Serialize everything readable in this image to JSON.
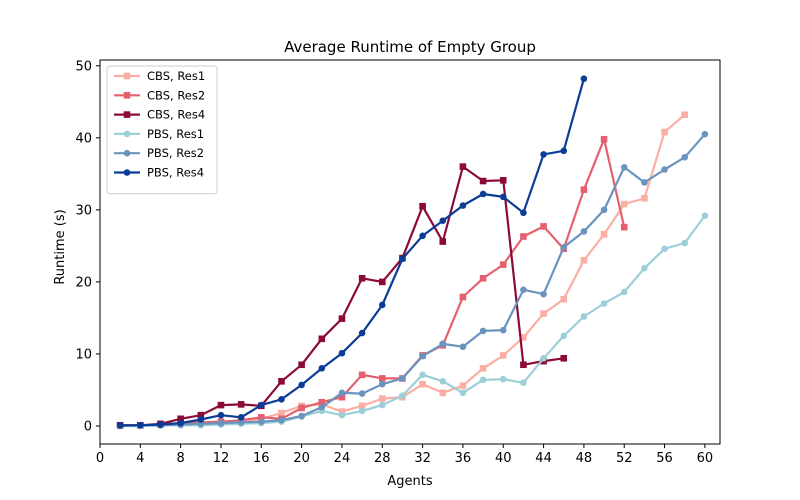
{
  "chart_data": {
    "type": "line",
    "title": "Average Runtime of Empty Group",
    "xlabel": "Agents",
    "ylabel": "Runtime (s)",
    "xlim": [
      0,
      61.5
    ],
    "ylim": [
      -2.5,
      50.8
    ],
    "xticks": [
      0,
      4,
      8,
      12,
      16,
      20,
      24,
      28,
      32,
      36,
      40,
      44,
      48,
      52,
      56,
      60
    ],
    "yticks": [
      0,
      10,
      20,
      30,
      40,
      50
    ],
    "grid": false,
    "legend_position": "top-left",
    "series": [
      {
        "name": "CBS, Res1",
        "color": "#fbaea3",
        "marker": "square",
        "x": [
          2,
          4,
          6,
          8,
          10,
          12,
          14,
          16,
          18,
          20,
          22,
          24,
          26,
          28,
          30,
          32,
          34,
          36,
          38,
          40,
          42,
          44,
          46,
          48,
          50,
          52,
          54,
          56,
          58
        ],
        "y": [
          0.1,
          0.1,
          0.2,
          0.3,
          0.4,
          0.5,
          0.6,
          1.0,
          1.8,
          2.8,
          3.0,
          2.0,
          2.8,
          3.8,
          4.0,
          5.8,
          4.6,
          5.6,
          8.0,
          9.8,
          12.3,
          15.6,
          17.6,
          23.0,
          26.6,
          30.8,
          31.6,
          40.8,
          43.2
        ]
      },
      {
        "name": "CBS, Res2",
        "color": "#e5606f",
        "marker": "square",
        "x": [
          2,
          4,
          6,
          8,
          10,
          12,
          14,
          16,
          18,
          20,
          22,
          24,
          26,
          28,
          30,
          32,
          34,
          36,
          38,
          40,
          42,
          44,
          46,
          48,
          50,
          52
        ],
        "y": [
          0.1,
          0.1,
          0.2,
          0.4,
          0.5,
          0.6,
          0.8,
          1.2,
          1.0,
          2.5,
          3.3,
          4.0,
          7.1,
          6.6,
          6.6,
          9.8,
          11.2,
          17.9,
          20.5,
          22.4,
          26.3,
          27.7,
          24.6,
          32.8,
          39.8,
          27.6
        ]
      },
      {
        "name": "CBS, Res4",
        "color": "#8c0a3a",
        "marker": "square",
        "x": [
          2,
          4,
          6,
          8,
          10,
          12,
          14,
          16,
          18,
          20,
          22,
          24,
          26,
          28,
          30,
          32,
          34,
          36,
          38,
          40,
          42,
          44,
          46
        ],
        "y": [
          0.1,
          0.1,
          0.3,
          1.0,
          1.5,
          2.9,
          3.0,
          2.8,
          6.2,
          8.5,
          12.1,
          14.9,
          20.5,
          20.0,
          23.3,
          30.5,
          25.6,
          36.0,
          34.0,
          34.1,
          8.5,
          9.0,
          9.4
        ]
      },
      {
        "name": "PBS, Res1",
        "color": "#9ccfd8",
        "marker": "circle",
        "x": [
          2,
          4,
          6,
          8,
          10,
          12,
          14,
          16,
          18,
          20,
          22,
          24,
          26,
          28,
          30,
          32,
          34,
          36,
          38,
          40,
          42,
          44,
          46,
          48,
          50,
          52,
          54,
          56,
          58,
          60
        ],
        "y": [
          0.0,
          0.0,
          0.1,
          0.1,
          0.1,
          0.2,
          0.3,
          0.4,
          0.6,
          1.3,
          2.1,
          1.5,
          2.1,
          2.9,
          4.2,
          7.1,
          6.2,
          4.6,
          6.4,
          6.5,
          6.0,
          9.4,
          12.5,
          15.2,
          17.0,
          18.6,
          21.9,
          24.6,
          25.4,
          29.2
        ]
      },
      {
        "name": "PBS, Res2",
        "color": "#6994be",
        "marker": "circle",
        "x": [
          2,
          4,
          6,
          8,
          10,
          12,
          14,
          16,
          18,
          20,
          22,
          24,
          26,
          28,
          30,
          32,
          34,
          36,
          38,
          40,
          42,
          44,
          46,
          48,
          50,
          52,
          54,
          56,
          58,
          60
        ],
        "y": [
          0.0,
          0.1,
          0.1,
          0.2,
          0.3,
          0.4,
          0.5,
          0.6,
          0.8,
          1.4,
          2.6,
          4.6,
          4.5,
          5.8,
          6.6,
          9.7,
          11.4,
          11.0,
          13.2,
          13.3,
          18.9,
          18.3,
          24.8,
          27.0,
          30.0,
          35.9,
          33.8,
          35.6,
          37.3,
          40.5
        ]
      },
      {
        "name": "PBS, Res4",
        "color": "#0b3c96",
        "marker": "circle",
        "x": [
          2,
          4,
          6,
          8,
          10,
          12,
          14,
          16,
          18,
          20,
          22,
          24,
          26,
          28,
          30,
          32,
          34,
          36,
          38,
          40,
          42,
          44,
          46,
          48
        ],
        "y": [
          0.1,
          0.1,
          0.2,
          0.4,
          0.9,
          1.5,
          1.2,
          2.9,
          3.7,
          5.7,
          8.0,
          10.1,
          12.9,
          16.8,
          23.2,
          26.4,
          28.5,
          30.6,
          32.2,
          31.8,
          29.6,
          37.7,
          38.2,
          48.2
        ]
      }
    ]
  }
}
